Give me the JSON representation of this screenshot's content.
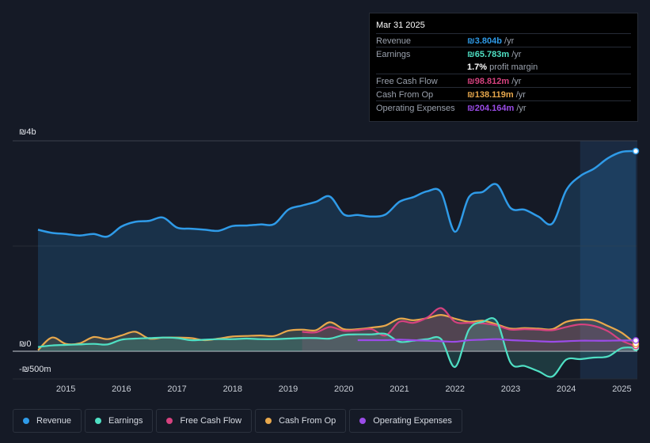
{
  "tooltip": {
    "date": "Mar 31 2025",
    "rows": [
      {
        "label": "Revenue",
        "value": "₪3.804b",
        "unit": " /yr",
        "color": "#2f9be8"
      },
      {
        "label": "Earnings",
        "value": "₪65.783m",
        "unit": " /yr",
        "color": "#4fe0c4"
      },
      {
        "label": "",
        "value": "1.7%",
        "unit": " profit margin",
        "color": "#ffffff"
      },
      {
        "label": "Free Cash Flow",
        "value": "₪98.812m",
        "unit": " /yr",
        "color": "#d6427f"
      },
      {
        "label": "Cash From Op",
        "value": "₪138.119m",
        "unit": " /yr",
        "color": "#e8a84c"
      },
      {
        "label": "Operating Expenses",
        "value": "₪204.164m",
        "unit": " /yr",
        "color": "#9b4ce8"
      }
    ]
  },
  "legend": [
    {
      "label": "Revenue",
      "color": "#2f9be8"
    },
    {
      "label": "Earnings",
      "color": "#4fe0c4"
    },
    {
      "label": "Free Cash Flow",
      "color": "#d6427f"
    },
    {
      "label": "Cash From Op",
      "color": "#e8a84c"
    },
    {
      "label": "Operating Expenses",
      "color": "#9b4ce8"
    }
  ],
  "chart_data": {
    "type": "area",
    "y_tick_labels": [
      "₪4b",
      "₪0",
      "-₪500m"
    ],
    "ylim": [
      -500,
      4000
    ],
    "y_unit": "millions ILS",
    "xlim": [
      2014.5,
      2025.25
    ],
    "x_tick_labels": [
      "2015",
      "2016",
      "2017",
      "2018",
      "2019",
      "2020",
      "2021",
      "2022",
      "2023",
      "2024",
      "2025"
    ],
    "x_ticks": [
      2015,
      2016,
      2017,
      2018,
      2019,
      2020,
      2021,
      2022,
      2023,
      2024,
      2025
    ],
    "forecast_shade_from": 2024.25,
    "series": [
      {
        "name": "Revenue",
        "color": "#2f9be8",
        "fill": true,
        "points": [
          [
            2014.5,
            2310
          ],
          [
            2014.75,
            2250
          ],
          [
            2015.0,
            2230
          ],
          [
            2015.25,
            2200
          ],
          [
            2015.5,
            2230
          ],
          [
            2015.75,
            2180
          ],
          [
            2016.0,
            2370
          ],
          [
            2016.25,
            2460
          ],
          [
            2016.5,
            2480
          ],
          [
            2016.75,
            2540
          ],
          [
            2017.0,
            2350
          ],
          [
            2017.25,
            2330
          ],
          [
            2017.5,
            2310
          ],
          [
            2017.75,
            2290
          ],
          [
            2018.0,
            2380
          ],
          [
            2018.25,
            2390
          ],
          [
            2018.5,
            2410
          ],
          [
            2018.75,
            2420
          ],
          [
            2019.0,
            2690
          ],
          [
            2019.25,
            2770
          ],
          [
            2019.5,
            2840
          ],
          [
            2019.75,
            2940
          ],
          [
            2020.0,
            2600
          ],
          [
            2020.25,
            2590
          ],
          [
            2020.5,
            2560
          ],
          [
            2020.75,
            2600
          ],
          [
            2021.0,
            2840
          ],
          [
            2021.25,
            2930
          ],
          [
            2021.5,
            3040
          ],
          [
            2021.75,
            3020
          ],
          [
            2022.0,
            2270
          ],
          [
            2022.25,
            2930
          ],
          [
            2022.5,
            3030
          ],
          [
            2022.75,
            3170
          ],
          [
            2023.0,
            2720
          ],
          [
            2023.25,
            2690
          ],
          [
            2023.5,
            2560
          ],
          [
            2023.75,
            2430
          ],
          [
            2024.0,
            3060
          ],
          [
            2024.25,
            3330
          ],
          [
            2024.5,
            3470
          ],
          [
            2024.75,
            3670
          ],
          [
            2025.0,
            3790
          ],
          [
            2025.25,
            3804
          ]
        ]
      },
      {
        "name": "Earnings",
        "color": "#4fe0c4",
        "fill": true,
        "points": [
          [
            2014.5,
            80
          ],
          [
            2014.75,
            110
          ],
          [
            2015.0,
            120
          ],
          [
            2015.25,
            130
          ],
          [
            2015.5,
            140
          ],
          [
            2015.75,
            130
          ],
          [
            2016.0,
            220
          ],
          [
            2016.25,
            240
          ],
          [
            2016.5,
            250
          ],
          [
            2016.75,
            260
          ],
          [
            2017.0,
            250
          ],
          [
            2017.25,
            210
          ],
          [
            2017.5,
            220
          ],
          [
            2017.75,
            230
          ],
          [
            2018.0,
            230
          ],
          [
            2018.25,
            240
          ],
          [
            2018.5,
            230
          ],
          [
            2018.75,
            230
          ],
          [
            2019.0,
            240
          ],
          [
            2019.25,
            250
          ],
          [
            2019.5,
            250
          ],
          [
            2019.75,
            240
          ],
          [
            2020.0,
            310
          ],
          [
            2020.25,
            320
          ],
          [
            2020.5,
            320
          ],
          [
            2020.75,
            330
          ],
          [
            2021.0,
            180
          ],
          [
            2021.25,
            200
          ],
          [
            2021.5,
            230
          ],
          [
            2021.75,
            230
          ],
          [
            2022.0,
            -300
          ],
          [
            2022.25,
            410
          ],
          [
            2022.5,
            560
          ],
          [
            2022.75,
            570
          ],
          [
            2023.0,
            -220
          ],
          [
            2023.25,
            -280
          ],
          [
            2023.5,
            -380
          ],
          [
            2023.75,
            -480
          ],
          [
            2024.0,
            -160
          ],
          [
            2024.25,
            -150
          ],
          [
            2024.5,
            -120
          ],
          [
            2024.75,
            -100
          ],
          [
            2025.0,
            60
          ],
          [
            2025.25,
            65.783
          ]
        ]
      },
      {
        "name": "Free Cash Flow",
        "color": "#d6427f",
        "fill": true,
        "from": 2019.25,
        "points": [
          [
            2019.25,
            370
          ],
          [
            2019.5,
            360
          ],
          [
            2019.75,
            460
          ],
          [
            2020.0,
            390
          ],
          [
            2020.25,
            400
          ],
          [
            2020.5,
            420
          ],
          [
            2020.75,
            300
          ],
          [
            2021.0,
            560
          ],
          [
            2021.25,
            540
          ],
          [
            2021.5,
            640
          ],
          [
            2021.75,
            820
          ],
          [
            2022.0,
            560
          ],
          [
            2022.25,
            540
          ],
          [
            2022.5,
            530
          ],
          [
            2022.75,
            490
          ],
          [
            2023.0,
            410
          ],
          [
            2023.25,
            420
          ],
          [
            2023.5,
            410
          ],
          [
            2023.75,
            400
          ],
          [
            2024.0,
            460
          ],
          [
            2024.25,
            510
          ],
          [
            2024.5,
            480
          ],
          [
            2024.75,
            380
          ],
          [
            2025.0,
            200
          ],
          [
            2025.25,
            98.812
          ]
        ]
      },
      {
        "name": "Cash From Op",
        "color": "#e8a84c",
        "fill": true,
        "points": [
          [
            2014.5,
            20
          ],
          [
            2014.75,
            260
          ],
          [
            2015.0,
            140
          ],
          [
            2015.25,
            150
          ],
          [
            2015.5,
            270
          ],
          [
            2015.75,
            230
          ],
          [
            2016.0,
            300
          ],
          [
            2016.25,
            370
          ],
          [
            2016.5,
            240
          ],
          [
            2016.75,
            260
          ],
          [
            2017.0,
            260
          ],
          [
            2017.25,
            250
          ],
          [
            2017.5,
            210
          ],
          [
            2017.75,
            240
          ],
          [
            2018.0,
            280
          ],
          [
            2018.25,
            290
          ],
          [
            2018.5,
            300
          ],
          [
            2018.75,
            290
          ],
          [
            2019.0,
            390
          ],
          [
            2019.25,
            410
          ],
          [
            2019.5,
            400
          ],
          [
            2019.75,
            550
          ],
          [
            2020.0,
            420
          ],
          [
            2020.25,
            420
          ],
          [
            2020.5,
            450
          ],
          [
            2020.75,
            490
          ],
          [
            2021.0,
            620
          ],
          [
            2021.25,
            590
          ],
          [
            2021.5,
            630
          ],
          [
            2021.75,
            690
          ],
          [
            2022.0,
            620
          ],
          [
            2022.25,
            560
          ],
          [
            2022.5,
            580
          ],
          [
            2022.75,
            510
          ],
          [
            2023.0,
            430
          ],
          [
            2023.25,
            440
          ],
          [
            2023.5,
            430
          ],
          [
            2023.75,
            420
          ],
          [
            2024.0,
            560
          ],
          [
            2024.25,
            600
          ],
          [
            2024.5,
            590
          ],
          [
            2024.75,
            480
          ],
          [
            2025.0,
            350
          ],
          [
            2025.25,
            138.119
          ]
        ]
      },
      {
        "name": "Operating Expenses",
        "color": "#9b4ce8",
        "fill": false,
        "from": 2020.25,
        "points": [
          [
            2020.25,
            210
          ],
          [
            2020.5,
            210
          ],
          [
            2020.75,
            210
          ],
          [
            2021.0,
            220
          ],
          [
            2021.25,
            210
          ],
          [
            2021.5,
            200
          ],
          [
            2021.75,
            190
          ],
          [
            2022.0,
            180
          ],
          [
            2022.25,
            210
          ],
          [
            2022.5,
            220
          ],
          [
            2022.75,
            230
          ],
          [
            2023.0,
            210
          ],
          [
            2023.25,
            200
          ],
          [
            2023.5,
            190
          ],
          [
            2023.75,
            180
          ],
          [
            2024.0,
            190
          ],
          [
            2024.25,
            200
          ],
          [
            2024.5,
            200
          ],
          [
            2024.75,
            200
          ],
          [
            2025.0,
            205
          ],
          [
            2025.25,
            204.164
          ]
        ]
      }
    ]
  }
}
